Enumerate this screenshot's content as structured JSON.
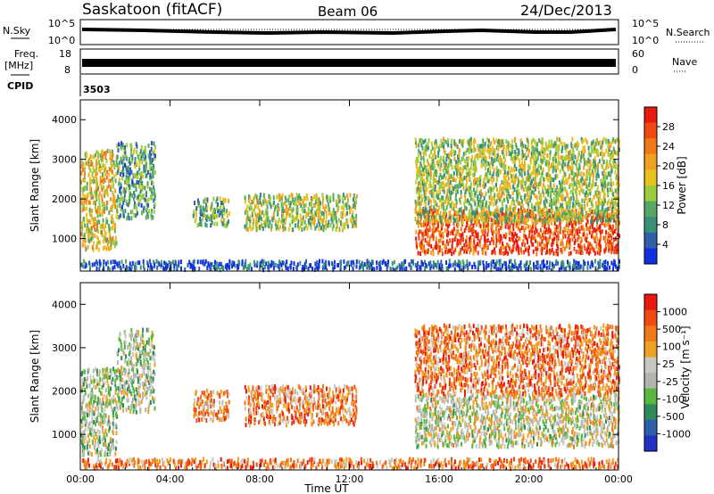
{
  "header": {
    "station": "Saskatoon (fitACF)",
    "beam": "Beam 06",
    "date": "24/Dec/2013"
  },
  "top_panels": {
    "nsky_label": "N.Sky",
    "nsearch_label": "N.Search",
    "noise_ticks": [
      "10^5",
      "10^0"
    ],
    "freq_label_1": "Freq.",
    "freq_label_2": "[MHz]",
    "freq_ticks_left": [
      "18",
      "8"
    ],
    "freq_ticks_right": [
      "60",
      "0"
    ],
    "nave_label": "Nave",
    "cpid_label": "CPID",
    "cpid_value": "3503"
  },
  "chart_data": [
    {
      "type": "heatmap",
      "name": "power",
      "ylabel": "Slant Range [km]",
      "xlabel": "",
      "ylim": [
        180,
        4500
      ],
      "yticks": [
        "1000",
        "2000",
        "3000",
        "4000"
      ],
      "xticks": [
        "00:00",
        "04:00",
        "08:00",
        "12:00",
        "16:00",
        "20:00",
        "00:00"
      ],
      "colorbar": {
        "label": "Power [dB]",
        "ticks": [
          "4",
          "8",
          "12",
          "16",
          "20",
          "24",
          "28"
        ],
        "colors": [
          "#1030e0",
          "#2e5fa8",
          "#3a8f7a",
          "#55a862",
          "#9bcc3c",
          "#e8c020",
          "#f0a020",
          "#f07818",
          "#ef4a12",
          "#e81a10"
        ]
      },
      "regions": [
        {
          "t": [
            0.0,
            1.6
          ],
          "r": [
            700,
            3200
          ],
          "level": 0.55
        },
        {
          "t": [
            1.6,
            3.3
          ],
          "r": [
            1500,
            3400
          ],
          "level": 0.3
        },
        {
          "t": [
            5.0,
            6.6
          ],
          "r": [
            1300,
            2000
          ],
          "level": 0.35
        },
        {
          "t": [
            7.3,
            12.3
          ],
          "r": [
            1200,
            2100
          ],
          "level": 0.45
        },
        {
          "t": [
            14.9,
            24.0
          ],
          "r": [
            600,
            1700
          ],
          "level": 0.85
        },
        {
          "t": [
            14.9,
            24.0
          ],
          "r": [
            1400,
            3500
          ],
          "level": 0.45
        },
        {
          "t": [
            0.0,
            24.0
          ],
          "r": [
            200,
            420
          ],
          "level": 0.1
        }
      ]
    },
    {
      "type": "heatmap",
      "name": "velocity",
      "ylabel": "Slant Range [km]",
      "xlabel": "Time UT",
      "ylim": [
        180,
        4500
      ],
      "yticks": [
        "1000",
        "2000",
        "3000",
        "4000"
      ],
      "xticks": [
        "00:00",
        "04:00",
        "08:00",
        "12:00",
        "16:00",
        "20:00",
        "00:00"
      ],
      "colorbar": {
        "label": "Velocity [m s⁻¹]",
        "ticks": [
          "1000",
          "500",
          "100",
          "25",
          "-25",
          "-100",
          "-500",
          "-1000"
        ],
        "colors": [
          "#2030c0",
          "#2a5fae",
          "#2f8a5a",
          "#5ab840",
          "#b4b4ac",
          "#c8c8c0",
          "#f0a020",
          "#f07818",
          "#ef4a12",
          "#e81a10"
        ]
      },
      "regions": [
        {
          "t": [
            0.0,
            1.6
          ],
          "r": [
            500,
            2500
          ],
          "level": 0.45
        },
        {
          "t": [
            1.6,
            3.3
          ],
          "r": [
            1500,
            3400
          ],
          "level": 0.45
        },
        {
          "t": [
            5.0,
            6.6
          ],
          "r": [
            1300,
            2000
          ],
          "level": 0.7
        },
        {
          "t": [
            7.3,
            12.3
          ],
          "r": [
            1200,
            2100
          ],
          "level": 0.72
        },
        {
          "t": [
            14.9,
            24.0
          ],
          "r": [
            700,
            1900
          ],
          "level": 0.5
        },
        {
          "t": [
            14.9,
            24.0
          ],
          "r": [
            1900,
            3500
          ],
          "level": 0.75
        },
        {
          "t": [
            0.0,
            24.0
          ],
          "r": [
            200,
            420
          ],
          "level": 0.75
        }
      ]
    }
  ]
}
